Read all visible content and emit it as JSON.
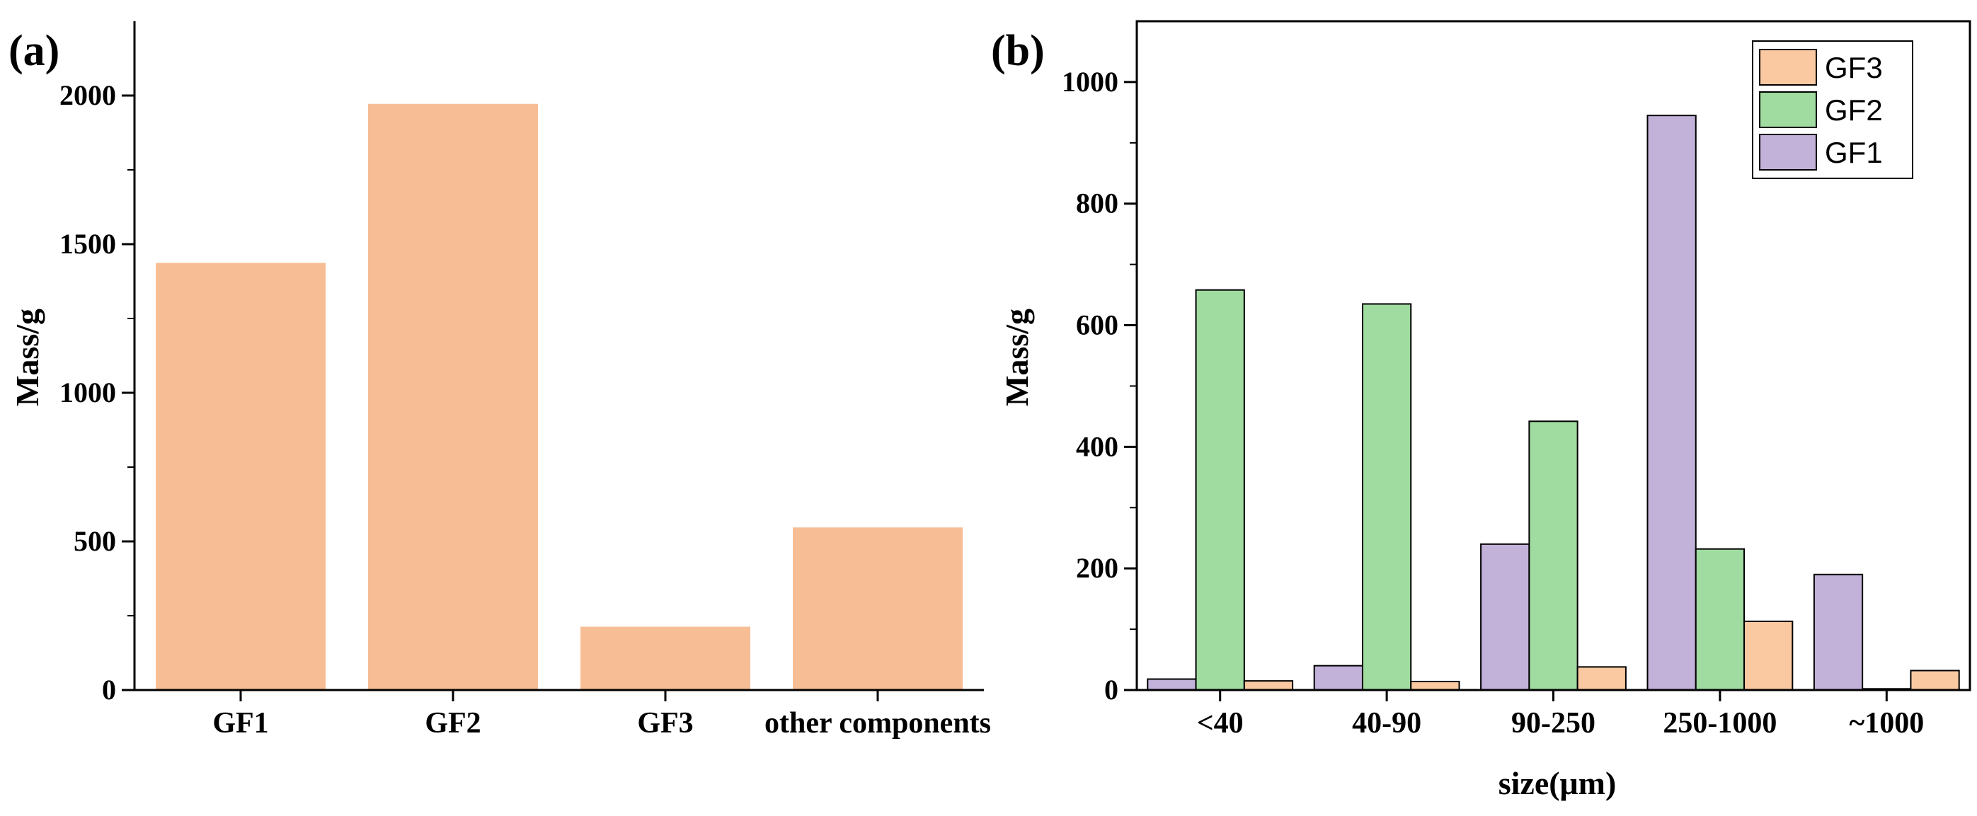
{
  "chart_data": [
    {
      "panel": "(a)",
      "type": "bar",
      "title": "",
      "xlabel": "",
      "ylabel": "Mass/g",
      "categories": [
        "GF1",
        "GF2",
        "GF3",
        "other components"
      ],
      "values": [
        1437,
        1972,
        213,
        547
      ],
      "ylim": [
        0,
        2250
      ],
      "yticks": [
        0,
        500,
        1000,
        1500,
        2000
      ],
      "bar_color": "#F7BE95",
      "grid": false
    },
    {
      "panel": "(b)",
      "type": "bar",
      "title": "",
      "xlabel": "size(μm)",
      "ylabel": "Mass/g",
      "categories": [
        "<40",
        "40-90",
        "90-250",
        "250-1000",
        "~1000"
      ],
      "series": [
        {
          "name": "GF1",
          "color": "#C2B1D9",
          "values": [
            18,
            40,
            240,
            945,
            190
          ]
        },
        {
          "name": "GF2",
          "color": "#A0DBA0",
          "values": [
            658,
            635,
            442,
            232,
            2
          ]
        },
        {
          "name": "GF3",
          "color": "#FAC9A1",
          "values": [
            15,
            14,
            38,
            113,
            32
          ]
        }
      ],
      "legend": {
        "placement": "top-right",
        "entries": [
          "GF3",
          "GF2",
          "GF1"
        ]
      },
      "ylim": [
        0,
        1100
      ],
      "yticks": [
        0,
        200,
        400,
        600,
        800,
        1000
      ],
      "grid": false
    }
  ]
}
